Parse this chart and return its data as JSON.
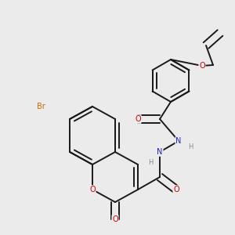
{
  "bg_color": "#ebebeb",
  "bond_color": "#1a1a1a",
  "bond_width": 1.4,
  "atom_colors": {
    "O": "#cc0000",
    "N": "#2222cc",
    "Br": "#cc6600",
    "H": "#888888",
    "C": "#1a1a1a"
  },
  "font_size": 7.0
}
